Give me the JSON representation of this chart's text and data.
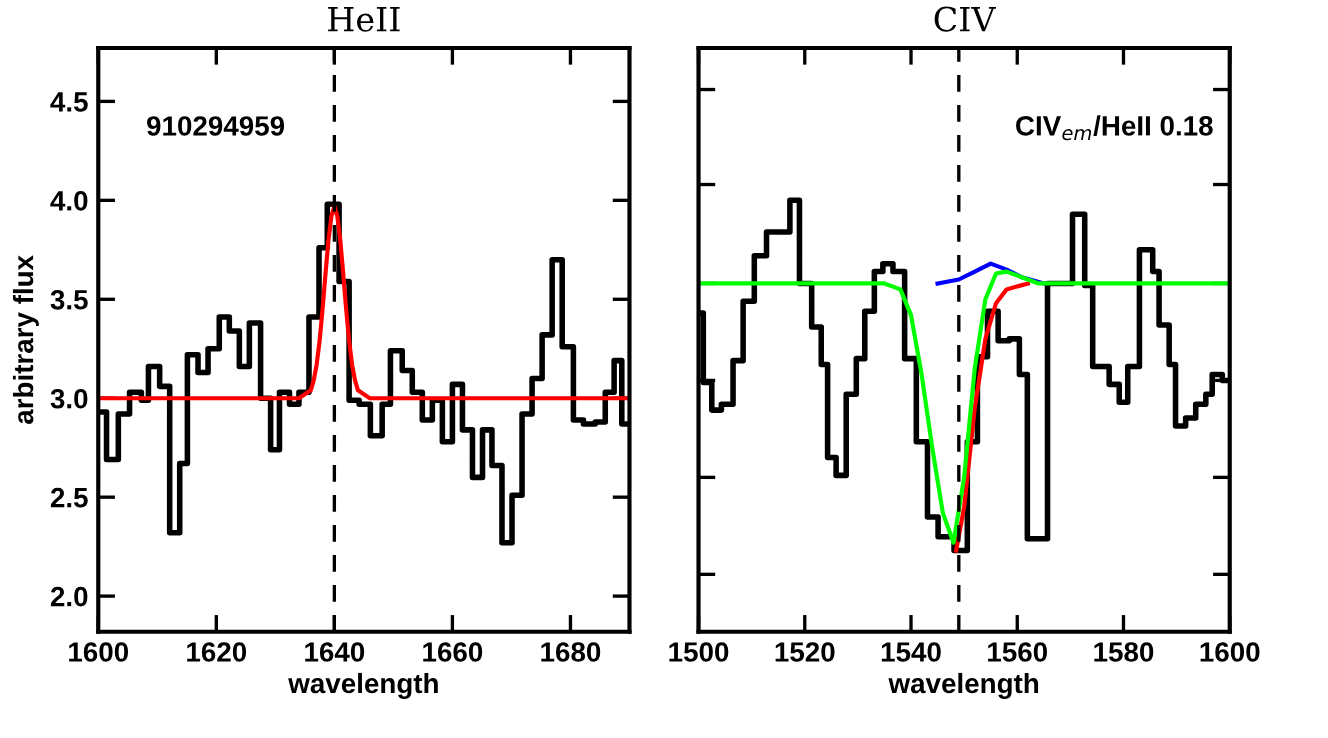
{
  "chart_data": [
    {
      "type": "line",
      "title": "HeII",
      "xlabel": "wavelength",
      "ylabel": "arbitrary flux",
      "xlim": [
        1600,
        1690
      ],
      "ylim": [
        1.82,
        4.77
      ],
      "xticks": [
        1600,
        1620,
        1640,
        1660,
        1680
      ],
      "yticks": [
        {
          "value": 2.0,
          "label": "2.0"
        },
        {
          "value": 2.5,
          "label": "2.5"
        },
        {
          "value": 3.0,
          "label": "3.0"
        },
        {
          "value": 3.5,
          "label": "3.5"
        },
        {
          "value": 4.0,
          "label": "4.0"
        },
        {
          "value": 4.5,
          "label": "4.5"
        }
      ],
      "annotations": [
        "910294959"
      ],
      "ref_lines": [
        {
          "axis": "x",
          "value": 1640,
          "color": "#000000",
          "line_style": "dashed"
        }
      ],
      "series": [
        {
          "type": "step",
          "color": "#000000",
          "x": [
            1600.0,
            1601.4,
            1603.4,
            1605.3,
            1607.3,
            1608.5,
            1610.4,
            1612.1,
            1613.8,
            1615.1,
            1616.9,
            1618.6,
            1620.5,
            1622.2,
            1623.9,
            1625.6,
            1627.5,
            1629.2,
            1630.7,
            1632.4,
            1634.0,
            1635.7,
            1637.4,
            1638.8,
            1640.8,
            1642.5,
            1644.2,
            1646.1,
            1648.1,
            1649.5,
            1651.5,
            1653.2,
            1654.9,
            1656.6,
            1658.3,
            1660.0,
            1661.7,
            1663.4,
            1665.1,
            1666.7,
            1668.4,
            1670.1,
            1671.8,
            1673.5,
            1675.2,
            1676.9,
            1678.6,
            1680.5,
            1682.2,
            1684.2,
            1685.9,
            1687.4,
            1688.7,
            1690.0
          ],
          "values": [
            2.93,
            2.69,
            2.92,
            3.03,
            2.99,
            3.16,
            3.06,
            2.32,
            2.67,
            3.22,
            3.13,
            3.25,
            3.41,
            3.34,
            3.16,
            3.38,
            3.0,
            2.74,
            3.03,
            2.97,
            3.03,
            3.41,
            3.76,
            3.98,
            3.59,
            2.99,
            2.97,
            2.81,
            2.97,
            3.24,
            3.14,
            3.03,
            2.89,
            2.99,
            2.78,
            3.07,
            2.84,
            2.6,
            2.84,
            2.66,
            2.27,
            2.51,
            2.92,
            3.1,
            3.32,
            3.7,
            3.26,
            2.89,
            2.87,
            2.88,
            3.03,
            3.19,
            2.87,
            2.87
          ]
        },
        {
          "color": "#ff0000",
          "x": [
            1600,
            1634,
            1636,
            1636.5,
            1637,
            1637.5,
            1638,
            1638.5,
            1639,
            1639.5,
            1640,
            1640.5,
            1641,
            1641.5,
            1642,
            1642.5,
            1643,
            1643.5,
            1644,
            1646,
            1690
          ],
          "values": [
            3.0,
            3.0,
            3.04,
            3.09,
            3.17,
            3.29,
            3.45,
            3.63,
            3.8,
            3.92,
            3.97,
            3.92,
            3.8,
            3.63,
            3.45,
            3.29,
            3.17,
            3.09,
            3.04,
            3.0,
            3.0
          ]
        }
      ]
    },
    {
      "type": "line",
      "title": "CIV",
      "xlabel": "wavelength",
      "xlim": [
        1500,
        1600
      ],
      "ylim": [
        1.82,
        4.77
      ],
      "tick_labels": "x",
      "xticks": [
        1500,
        1520,
        1540,
        1560,
        1580,
        1600
      ],
      "yticks": [
        {
          "value": 2.11,
          "label": null
        },
        {
          "value": 2.6,
          "label": null
        },
        {
          "value": 3.09,
          "label": null
        },
        {
          "value": 3.58,
          "label": null
        },
        {
          "value": 4.08,
          "label": null
        },
        {
          "value": 4.56,
          "label": null
        }
      ],
      "annotations": [
        "CIV$_{em}$/HeII 0.18"
      ],
      "ref_lines": [
        {
          "axis": "x",
          "value": 1549,
          "color": "#000000",
          "line_style": "dashed"
        }
      ],
      "series": [
        {
          "type": "step",
          "color": "#000000",
          "x": [
            1500.0,
            1500.9,
            1502.5,
            1504.3,
            1506.5,
            1508.4,
            1510.5,
            1512.8,
            1517.2,
            1519.0,
            1521.3,
            1523.1,
            1524.3,
            1525.9,
            1527.8,
            1529.7,
            1531.3,
            1533.1,
            1534.7,
            1536.6,
            1538.8,
            1541.0,
            1543.1,
            1545.1,
            1548.1,
            1550.6,
            1552.5,
            1554.4,
            1556.4,
            1558.5,
            1560.4,
            1561.9,
            1565.7,
            1570.4,
            1572.7,
            1574.2,
            1577.3,
            1579.2,
            1580.8,
            1583.0,
            1585.5,
            1586.7,
            1588.6,
            1589.8,
            1591.7,
            1593.6,
            1595.5,
            1596.7,
            1598.6,
            1600.0
          ],
          "values": [
            3.43,
            3.08,
            2.94,
            2.97,
            3.19,
            3.49,
            3.72,
            3.84,
            4.0,
            3.58,
            3.36,
            3.17,
            2.7,
            2.61,
            3.02,
            3.2,
            3.44,
            3.64,
            3.68,
            3.64,
            3.2,
            2.78,
            2.4,
            2.3,
            2.23,
            2.78,
            3.21,
            3.44,
            3.29,
            3.3,
            3.12,
            2.29,
            3.58,
            3.93,
            3.57,
            3.16,
            3.07,
            2.98,
            3.16,
            3.75,
            3.64,
            3.37,
            3.17,
            2.86,
            2.9,
            2.97,
            3.02,
            3.12,
            3.09,
            3.09
          ]
        },
        {
          "color": "#0000ff",
          "x": [
            1545,
            1549,
            1552,
            1555,
            1558,
            1561,
            1565
          ],
          "values": [
            3.58,
            3.6,
            3.64,
            3.68,
            3.65,
            3.61,
            3.58
          ]
        },
        {
          "color": "#ff0000",
          "x": [
            1548.5,
            1550,
            1552,
            1554,
            1556,
            1558,
            1562
          ],
          "values": [
            2.23,
            2.45,
            2.95,
            3.3,
            3.48,
            3.55,
            3.58
          ]
        },
        {
          "color": "#00ff00",
          "x": [
            1500,
            1535,
            1538,
            1540,
            1542,
            1544,
            1546,
            1548,
            1550,
            1552,
            1554,
            1556,
            1558,
            1560,
            1564,
            1600
          ],
          "values": [
            3.58,
            3.58,
            3.55,
            3.42,
            3.12,
            2.75,
            2.42,
            2.27,
            2.6,
            3.15,
            3.5,
            3.63,
            3.64,
            3.62,
            3.58,
            3.58
          ]
        }
      ]
    }
  ]
}
